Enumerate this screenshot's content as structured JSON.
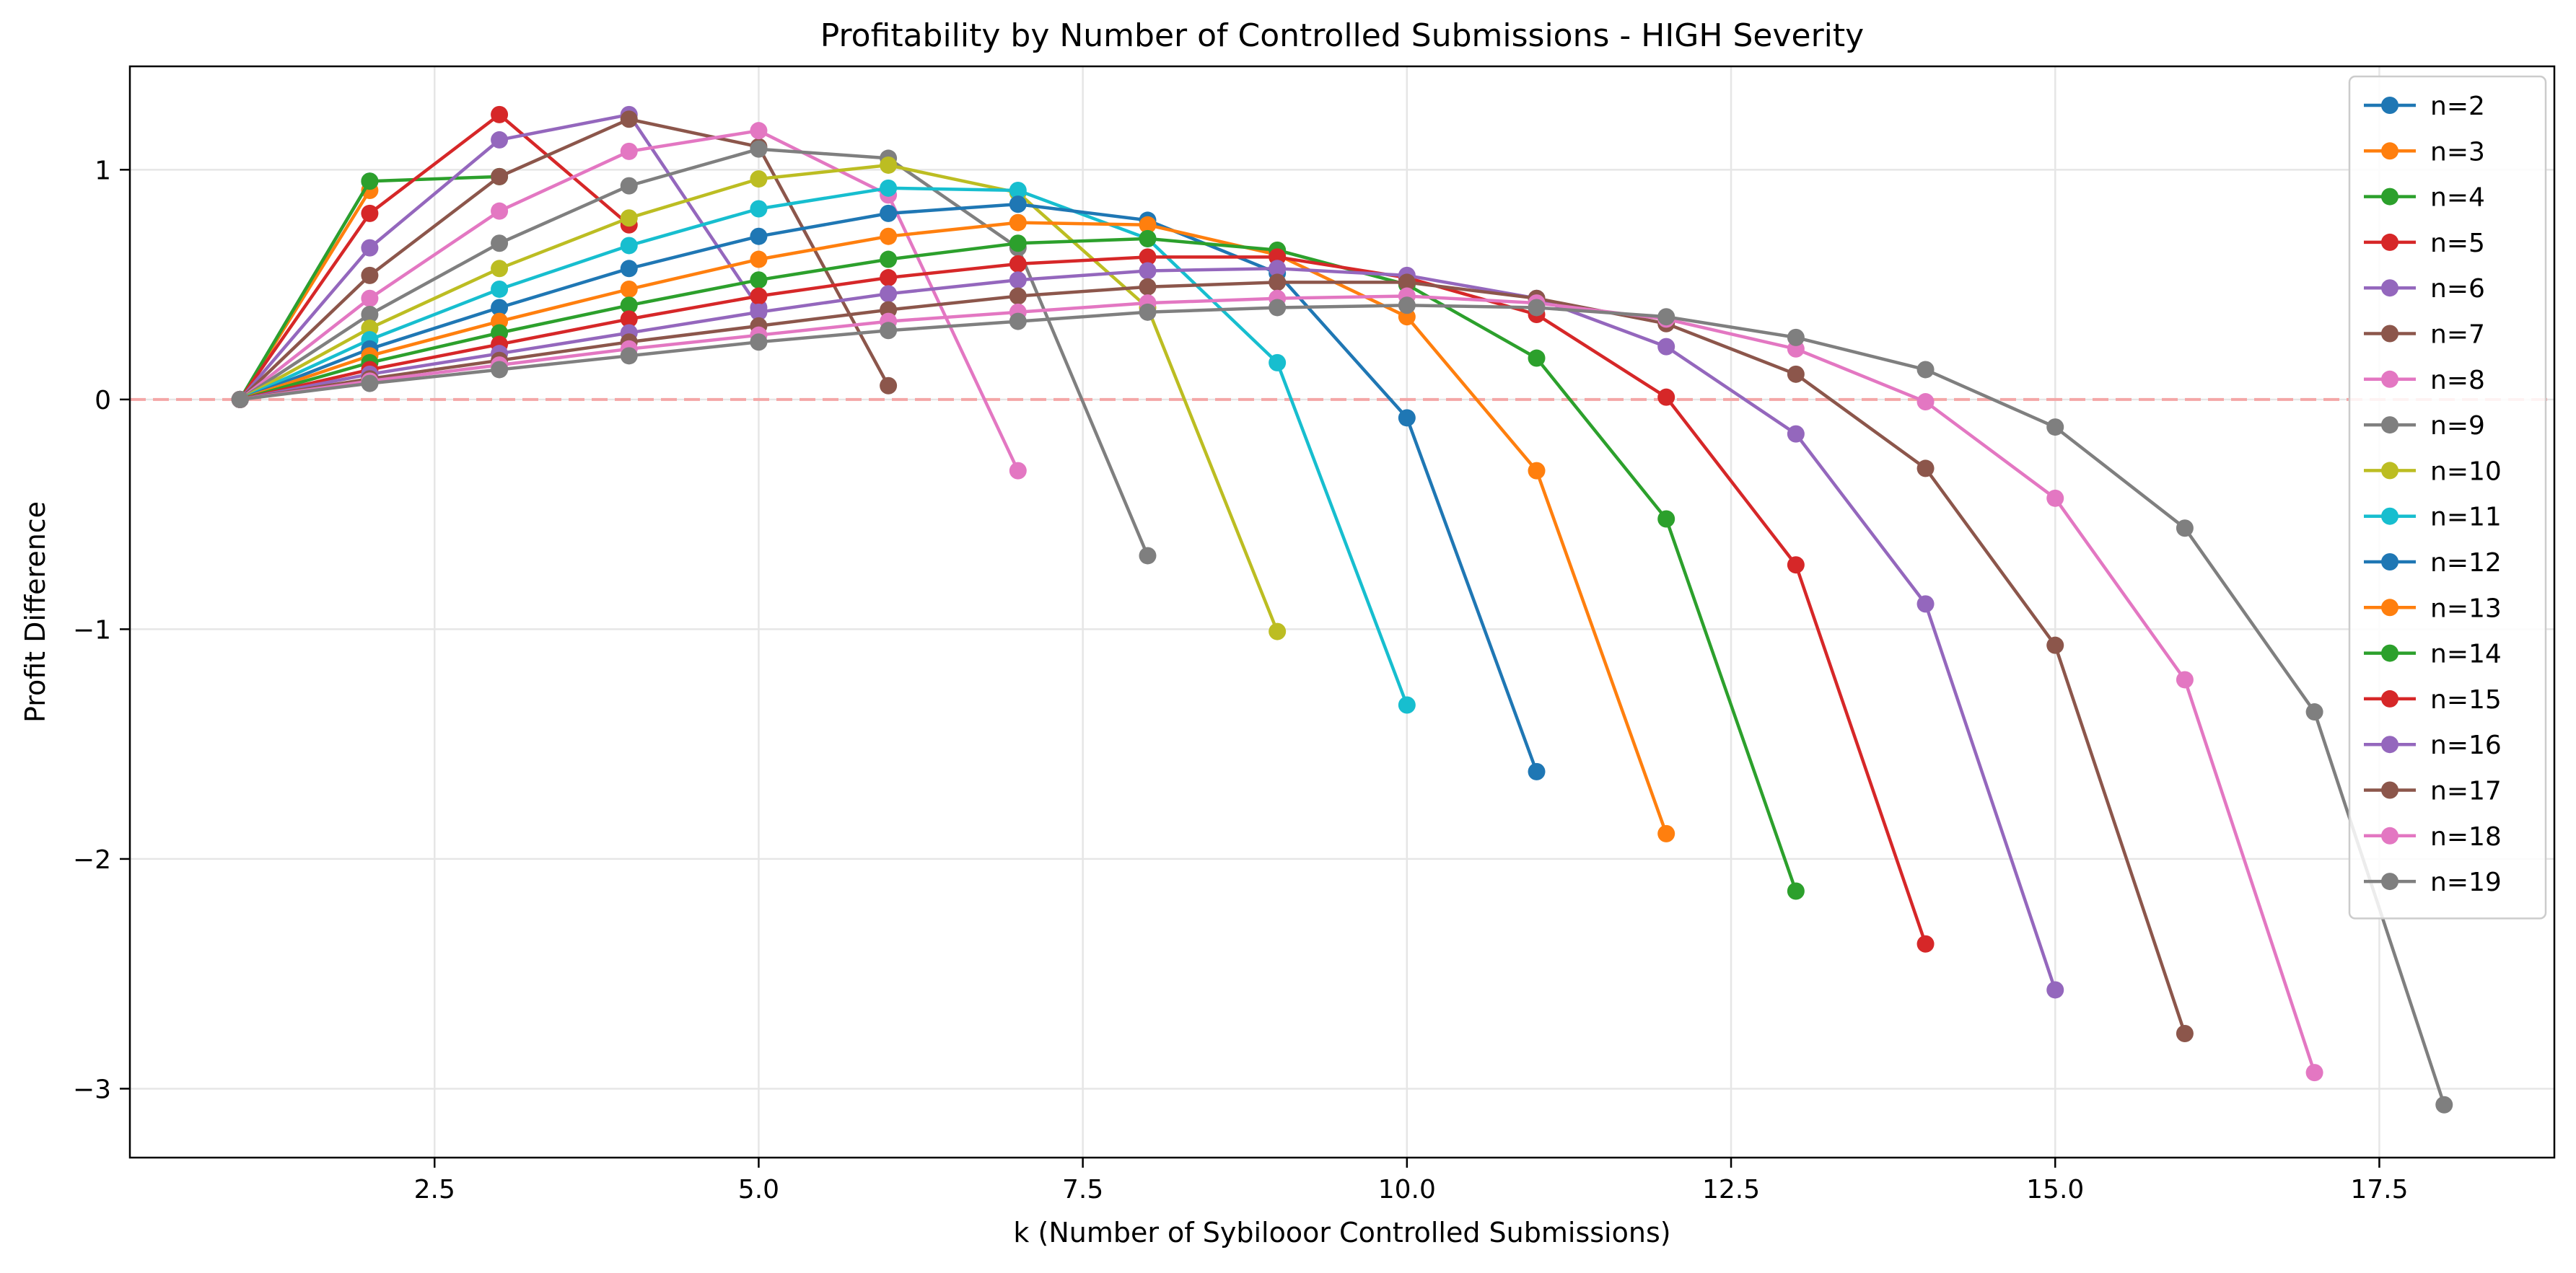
{
  "chart_data": {
    "type": "line",
    "title": "Profitability by Number of Controlled Submissions - HIGH Severity",
    "xlabel": "k (Number of Sybilooor Controlled Submissions)",
    "ylabel": "Profit Difference",
    "xlim": [
      0.15,
      18.85
    ],
    "ylim": [
      -3.3,
      1.45
    ],
    "xticks": [
      2.5,
      5.0,
      7.5,
      10.0,
      12.5,
      15.0,
      17.5
    ],
    "xtick_labels": [
      "2.5",
      "5.0",
      "7.5",
      "10.0",
      "12.5",
      "15.0",
      "17.5"
    ],
    "yticks": [
      1,
      0,
      -1,
      -2,
      -3
    ],
    "ytick_labels": [
      "1",
      "0",
      "−1",
      "−2",
      "−3"
    ],
    "grid": true,
    "legend_position": "top-right",
    "reference_line": {
      "y": 0,
      "color": "#f4a6a6",
      "style": "dashed"
    },
    "series": [
      {
        "name": "n=2",
        "color": "#1f77b4",
        "x": [
          1,
          2
        ],
        "y": [
          0,
          0.95
        ]
      },
      {
        "name": "n=3",
        "color": "#ff7f0e",
        "x": [
          1,
          2
        ],
        "y": [
          0,
          0.91
        ]
      },
      {
        "name": "n=4",
        "color": "#2ca02c",
        "x": [
          1,
          2,
          3
        ],
        "y": [
          0,
          0.95,
          0.97
        ]
      },
      {
        "name": "n=5",
        "color": "#d62728",
        "x": [
          1,
          2,
          3,
          4
        ],
        "y": [
          0,
          0.81,
          1.24,
          0.76
        ]
      },
      {
        "name": "n=6",
        "color": "#9467bd",
        "x": [
          1,
          2,
          3,
          4,
          5
        ],
        "y": [
          0,
          0.66,
          1.13,
          1.24,
          0.4
        ]
      },
      {
        "name": "n=7",
        "color": "#8c564b",
        "x": [
          1,
          2,
          3,
          4,
          5,
          6
        ],
        "y": [
          0,
          0.54,
          0.97,
          1.22,
          1.1,
          0.06
        ]
      },
      {
        "name": "n=8",
        "color": "#e377c2",
        "x": [
          1,
          2,
          3,
          4,
          5,
          6,
          7
        ],
        "y": [
          0,
          0.44,
          0.82,
          1.08,
          1.17,
          0.89,
          -0.31
        ]
      },
      {
        "name": "n=9",
        "color": "#7f7f7f",
        "x": [
          1,
          2,
          3,
          4,
          5,
          6,
          7,
          8
        ],
        "y": [
          0,
          0.37,
          0.68,
          0.93,
          1.09,
          1.05,
          0.66,
          -0.68
        ]
      },
      {
        "name": "n=10",
        "color": "#bcbd22",
        "x": [
          1,
          2,
          3,
          4,
          5,
          6,
          7,
          8,
          9
        ],
        "y": [
          0,
          0.31,
          0.57,
          0.79,
          0.96,
          1.02,
          0.9,
          0.4,
          -1.01
        ]
      },
      {
        "name": "n=11",
        "color": "#17becf",
        "x": [
          1,
          2,
          3,
          4,
          5,
          6,
          7,
          8,
          9,
          10
        ],
        "y": [
          0,
          0.26,
          0.48,
          0.67,
          0.83,
          0.92,
          0.91,
          0.7,
          0.16,
          -1.33
        ]
      },
      {
        "name": "n=12",
        "color": "#1f77b4",
        "x": [
          1,
          2,
          3,
          4,
          5,
          6,
          7,
          8,
          9,
          10,
          11
        ],
        "y": [
          0,
          0.22,
          0.4,
          0.57,
          0.71,
          0.81,
          0.85,
          0.78,
          0.55,
          -0.08,
          -1.62
        ]
      },
      {
        "name": "n=13",
        "color": "#ff7f0e",
        "x": [
          1,
          2,
          3,
          4,
          5,
          6,
          7,
          8,
          9,
          10,
          11,
          12
        ],
        "y": [
          0,
          0.19,
          0.34,
          0.48,
          0.61,
          0.71,
          0.77,
          0.76,
          0.63,
          0.36,
          -0.31,
          -1.89
        ]
      },
      {
        "name": "n=14",
        "color": "#2ca02c",
        "x": [
          1,
          2,
          3,
          4,
          5,
          6,
          7,
          8,
          9,
          10,
          11,
          12,
          13
        ],
        "y": [
          0,
          0.16,
          0.29,
          0.41,
          0.52,
          0.61,
          0.68,
          0.7,
          0.65,
          0.5,
          0.18,
          -0.52,
          -2.14
        ]
      },
      {
        "name": "n=15",
        "color": "#d62728",
        "x": [
          1,
          2,
          3,
          4,
          5,
          6,
          7,
          8,
          9,
          10,
          11,
          12,
          13,
          14
        ],
        "y": [
          0,
          0.13,
          0.24,
          0.35,
          0.45,
          0.53,
          0.59,
          0.62,
          0.62,
          0.53,
          0.37,
          0.01,
          -0.72,
          -2.37
        ]
      },
      {
        "name": "n=16",
        "color": "#9467bd",
        "x": [
          1,
          2,
          3,
          4,
          5,
          6,
          7,
          8,
          9,
          10,
          11,
          12,
          13,
          14,
          15
        ],
        "y": [
          0,
          0.11,
          0.2,
          0.29,
          0.38,
          0.46,
          0.52,
          0.56,
          0.57,
          0.54,
          0.44,
          0.23,
          -0.15,
          -0.89,
          -2.57
        ]
      },
      {
        "name": "n=17",
        "color": "#8c564b",
        "x": [
          1,
          2,
          3,
          4,
          5,
          6,
          7,
          8,
          9,
          10,
          11,
          12,
          13,
          14,
          15,
          16
        ],
        "y": [
          0,
          0.09,
          0.17,
          0.25,
          0.32,
          0.39,
          0.45,
          0.49,
          0.51,
          0.51,
          0.44,
          0.33,
          0.11,
          -0.3,
          -1.07,
          -2.76
        ]
      },
      {
        "name": "n=18",
        "color": "#e377c2",
        "x": [
          1,
          2,
          3,
          4,
          5,
          6,
          7,
          8,
          9,
          10,
          11,
          12,
          13,
          14,
          15,
          16,
          17
        ],
        "y": [
          0,
          0.08,
          0.15,
          0.22,
          0.28,
          0.34,
          0.38,
          0.42,
          0.44,
          0.45,
          0.42,
          0.35,
          0.22,
          -0.01,
          -0.43,
          -1.22,
          -2.93
        ]
      },
      {
        "name": "n=19",
        "color": "#7f7f7f",
        "x": [
          1,
          2,
          3,
          4,
          5,
          6,
          7,
          8,
          9,
          10,
          11,
          12,
          13,
          14,
          15,
          16,
          17,
          18
        ],
        "y": [
          0,
          0.07,
          0.13,
          0.19,
          0.25,
          0.3,
          0.34,
          0.38,
          0.4,
          0.41,
          0.4,
          0.36,
          0.27,
          0.13,
          -0.12,
          -0.56,
          -1.36,
          -3.07
        ]
      }
    ]
  }
}
